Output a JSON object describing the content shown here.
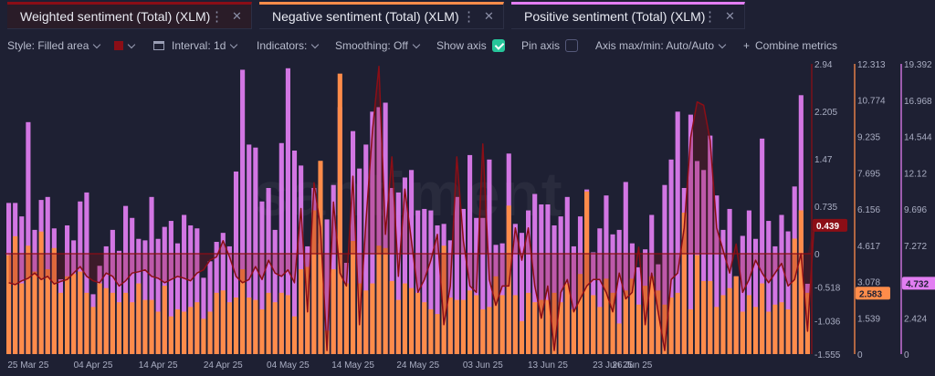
{
  "tabs": [
    {
      "label": "Weighted sentiment (Total) (XLM)",
      "color": "#8b0e16"
    },
    {
      "label": "Negative sentiment (Total) (XLM)",
      "color": "#ff8c4a"
    },
    {
      "label": "Positive sentiment (Total) (XLM)",
      "color": "#e27ef2"
    }
  ],
  "toolbar": {
    "style": "Style: Filled area",
    "interval": "Interval: 1d",
    "indicators": "Indicators:",
    "smoothing": "Smoothing: Off",
    "show_axis": "Show axis",
    "pin_axis": "Pin axis",
    "axis_maxmin": "Axis max/min: Auto/Auto",
    "combine": "Combine metrics",
    "show_axis_checked": true,
    "pin_axis_checked": false
  },
  "watermark": "santiment",
  "chart_data": {
    "type": "bar",
    "x_start": "2025-03-22",
    "x_ticks": [
      "25 Mar 25",
      "04 Apr 25",
      "14 Apr 25",
      "24 Apr 25",
      "04 May 25",
      "14 May 25",
      "24 May 25",
      "03 Jun 25",
      "13 Jun 25",
      "23 Jun 25",
      "26 Jun 25"
    ],
    "x_tick_dates": [
      "2025-03-25",
      "2025-04-04",
      "2025-04-14",
      "2025-04-24",
      "2025-05-04",
      "2025-05-14",
      "2025-05-24",
      "2025-06-03",
      "2025-06-13",
      "2025-06-23",
      "2025-06-26"
    ],
    "axes": [
      {
        "name": "weighted",
        "color": "#8b0e16",
        "ylim": [
          -1.555,
          2.94
        ],
        "ticks": [
          "2.94",
          "2.205",
          "1.47",
          "0.735",
          "0",
          "-0.518",
          "-1.036",
          "-1.555"
        ],
        "tick_values": [
          2.94,
          2.205,
          1.47,
          0.735,
          0,
          -0.518,
          -1.036,
          -1.555
        ],
        "current": "0.439"
      },
      {
        "name": "negative",
        "color": "#ff8c4a",
        "ylim": [
          0,
          12.313
        ],
        "ticks": [
          "12.313",
          "10.774",
          "9.235",
          "7.695",
          "6.156",
          "4.617",
          "3.078",
          "1.539",
          "0"
        ],
        "tick_values": [
          12.313,
          10.774,
          9.235,
          7.695,
          6.156,
          4.617,
          3.078,
          1.539,
          0
        ],
        "current": "2.583"
      },
      {
        "name": "positive",
        "color": "#e27ef2",
        "ylim": [
          0,
          19.392
        ],
        "ticks": [
          "19.392",
          "16.968",
          "14.544",
          "12.12",
          "9.696",
          "7.272",
          "4.848",
          "2.424",
          "0"
        ],
        "tick_values": [
          19.392,
          16.968,
          14.544,
          12.12,
          9.696,
          7.272,
          4.848,
          2.424,
          0
        ],
        "current": "4.732"
      }
    ],
    "series": [
      {
        "name": "Positive sentiment (Total) (XLM)",
        "axis": "positive",
        "color": "#e27ef2",
        "values": [
          10.1,
          10.1,
          9.2,
          15.5,
          8.3,
          10.3,
          10.5,
          8.4,
          5.0,
          8.6,
          7.6,
          10.2,
          10.8,
          4.0,
          5.9,
          7.2,
          8.3,
          6.9,
          9.9,
          9.1,
          7.7,
          7.6,
          10.5,
          7.7,
          8.5,
          8.9,
          7.4,
          9.3,
          8.6,
          8.4,
          5.1,
          6.2,
          7.5,
          8.1,
          7.2,
          12.2,
          19.0,
          14.0,
          13.8,
          10.2,
          11.1,
          8.3,
          14.1,
          19.1,
          13.6,
          12.6,
          7.2,
          11.1,
          7.4,
          9.0,
          11.3,
          16.5,
          6.1,
          14.9,
          12.4,
          14.0,
          16.2,
          16.5,
          16.8,
          11.1,
          10.8,
          11.8,
          12.3,
          9.6,
          9.7,
          9.6,
          8.6,
          8.7,
          7.6,
          10.5,
          9.7,
          13.3,
          9.1,
          9.1,
          13.0,
          7.3,
          7.4,
          13.4,
          8.7,
          8.1,
          9.6,
          10.7,
          10.0,
          10.0,
          8.6,
          9.2,
          10.5,
          7.2,
          9.2,
          11.0,
          6.8,
          8.4,
          10.6,
          8.0,
          8.3,
          11.5,
          7.4,
          5.8,
          7.0,
          9.3,
          6.0,
          11.3,
          13.0,
          16.2,
          11.1,
          16.0,
          12.9,
          12.3,
          14.6,
          10.6,
          8.3,
          9.7,
          5.2,
          7.9,
          9.6,
          7.7,
          14.4,
          8.9,
          7.2,
          9.3,
          8.2,
          11.2,
          17.3,
          4.7
        ],
        "current": "4.732"
      },
      {
        "name": "Negative sentiment (Total) (XLM)",
        "axis": "negative",
        "color": "#ff8c4a",
        "values": [
          4.2,
          5.0,
          3.0,
          4.6,
          3.5,
          5.2,
          3.6,
          4.5,
          2.6,
          3.3,
          3.4,
          3.5,
          2.6,
          2.0,
          3.0,
          2.8,
          2.6,
          2.2,
          2.6,
          2.2,
          3.0,
          2.3,
          2.3,
          1.8,
          2.9,
          1.6,
          1.9,
          1.8,
          2.0,
          2.2,
          1.5,
          1.8,
          2.6,
          2.7,
          2.2,
          2.4,
          3.6,
          2.4,
          2.3,
          1.9,
          2.6,
          2.2,
          2.6,
          2.5,
          1.6,
          3.6,
          3.7,
          6.1,
          8.2,
          1.0,
          3.6,
          11.9,
          3.0,
          4.8,
          3.0,
          2.7,
          3.0,
          4.6,
          4.5,
          3.1,
          2.3,
          3.0,
          2.8,
          2.6,
          2.2,
          1.9,
          1.7,
          4.6,
          2.4,
          2.3,
          2.3,
          2.7,
          2.5,
          1.9,
          2.0,
          3.3,
          2.5,
          6.3,
          2.5,
          1.4,
          2.6,
          2.2,
          2.3,
          2.3,
          2.6,
          2.2,
          3.0,
          1.9,
          3.4,
          6.9,
          2.5,
          2.0,
          3.2,
          2.6,
          1.3,
          2.7,
          3.2,
          2.1,
          2.9,
          3.3,
          2.7,
          2.1,
          2.4,
          2.6,
          6.0,
          1.9,
          4.2,
          3.1,
          3.1,
          2.0,
          2.5,
          2.8,
          3.3,
          1.8,
          2.5,
          2.0,
          3.0,
          1.8,
          2.1,
          2.2,
          1.9,
          4.9,
          6.1,
          2.6
        ],
        "current": "2.583"
      },
      {
        "name": "Weighted sentiment (Total) (XLM)",
        "axis": "weighted",
        "color": "#8b0e16",
        "values": [
          -0.45,
          -0.48,
          -0.42,
          -0.38,
          -0.3,
          -0.4,
          -0.35,
          -0.47,
          -0.43,
          -0.4,
          -0.3,
          -0.2,
          -0.35,
          -0.42,
          -0.45,
          -0.3,
          -0.35,
          -0.5,
          -0.42,
          -0.3,
          -0.28,
          -0.25,
          -0.35,
          -0.38,
          -0.45,
          -0.4,
          -0.35,
          -0.38,
          -0.42,
          -0.3,
          -0.25,
          -0.1,
          -0.05,
          0.2,
          -0.05,
          -0.35,
          -0.45,
          -0.4,
          -0.2,
          -0.4,
          -0.1,
          -0.3,
          -0.35,
          -0.25,
          -0.45,
          0.7,
          -0.9,
          1.1,
          0.4,
          -1.5,
          0.8,
          -0.3,
          -0.5,
          1.2,
          -1.1,
          0.5,
          1.9,
          2.9,
          0.3,
          1.5,
          -0.35,
          1.0,
          0.2,
          -0.6,
          -0.4,
          -0.1,
          0.3,
          -1.1,
          -0.5,
          1.5,
          0.2,
          -0.5,
          -0.6,
          1.7,
          -0.4,
          -0.8,
          -0.5,
          -0.5,
          0.4,
          -0.1,
          0.4,
          -0.5,
          -1.0,
          -0.5,
          -1.5,
          -0.6,
          -0.4,
          -0.9,
          -0.7,
          -0.5,
          -0.4,
          -0.4,
          -0.6,
          -0.9,
          -0.3,
          -0.7,
          -0.6,
          0.1,
          -1.1,
          -0.3,
          -0.9,
          -1.5,
          -0.4,
          -0.3,
          0.4,
          1.8,
          2.35,
          2.3,
          1.75,
          0.4,
          0.05,
          -0.3,
          0.15,
          -0.6,
          -0.4,
          -0.1,
          -0.3,
          -0.45,
          -0.3,
          -0.15,
          -0.5,
          -0.4,
          0.0,
          -1.2,
          0.44
        ],
        "current": "0.439"
      }
    ]
  }
}
